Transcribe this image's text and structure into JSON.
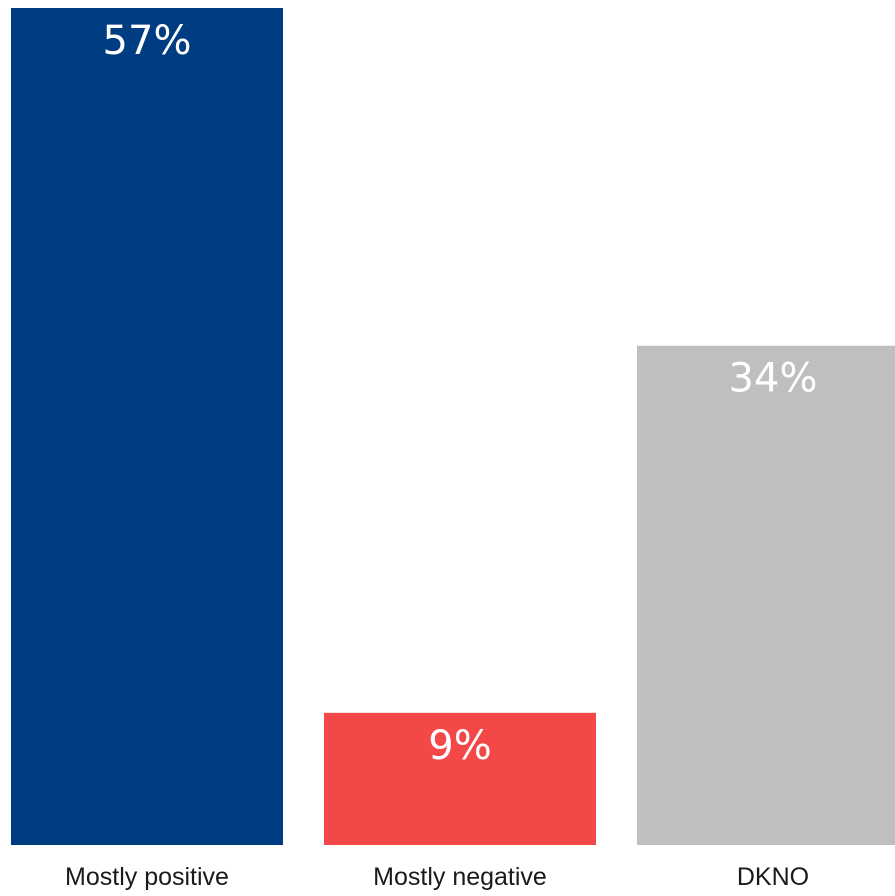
{
  "chart_data": {
    "type": "bar",
    "title": "",
    "xlabel": "",
    "ylabel": "",
    "ylim": [
      0,
      57
    ],
    "grid": false,
    "legend": "none",
    "categories": [
      "Mostly positive",
      "Mostly negative",
      "DKNO"
    ],
    "values": [
      57,
      9,
      34
    ],
    "data_labels": [
      "57%",
      "9%",
      "34%"
    ],
    "colors": [
      "#003C82",
      "#F44848",
      "#BFBFBF"
    ]
  }
}
